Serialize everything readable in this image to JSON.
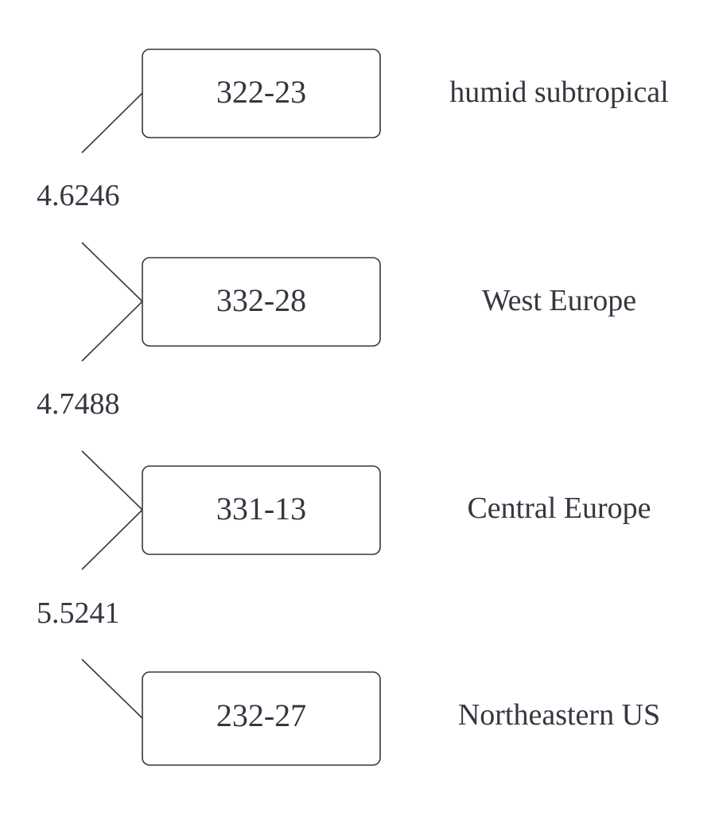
{
  "nodes": [
    {
      "id": "322-23",
      "region": "humid subtropical"
    },
    {
      "id": "332-28",
      "region": "West Europe"
    },
    {
      "id": "331-13",
      "region": "Central Europe"
    },
    {
      "id": "232-27",
      "region": "Northeastern US"
    }
  ],
  "links": [
    {
      "value": "4.6246"
    },
    {
      "value": "4.7488"
    },
    {
      "value": "5.5241"
    }
  ],
  "colors": {
    "stroke": "#333840",
    "text": "#333840",
    "background": "#ffffff"
  }
}
